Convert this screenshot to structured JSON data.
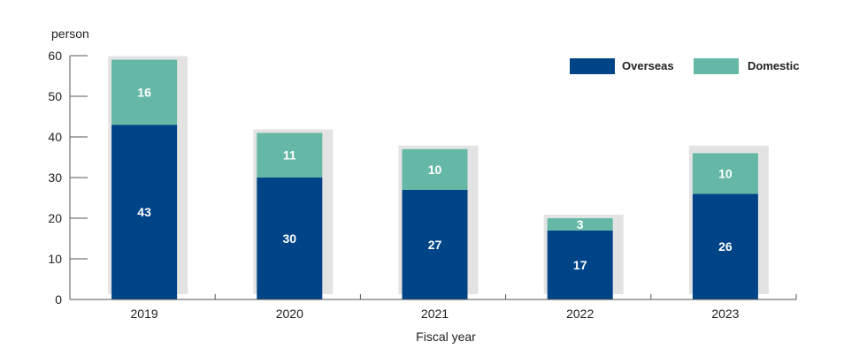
{
  "chart_data": {
    "type": "bar",
    "stacked": true,
    "categories": [
      "2019",
      "2020",
      "2021",
      "2022",
      "2023"
    ],
    "series": [
      {
        "name": "Overseas",
        "values": [
          43,
          30,
          27,
          17,
          26
        ],
        "color": "#004488",
        "label_values": [
          "43",
          "30",
          "27",
          "17",
          "26"
        ]
      },
      {
        "name": "Domestic",
        "values": [
          16,
          11,
          10,
          3,
          10
        ],
        "color": "#66B8A6",
        "label_values": [
          "16",
          "11",
          "10",
          "3",
          "10"
        ]
      }
    ],
    "bar_totals_drawn": [
      59,
      41,
      37,
      20,
      37
    ],
    "shadow_color": "#E3E3E3",
    "xlabel": "Fiscal year",
    "ylabel": "person",
    "ylim": [
      0,
      60
    ],
    "yticks": [
      0,
      10,
      20,
      30,
      40,
      50,
      60
    ],
    "ytick_labels": [
      "0",
      "10",
      "20",
      "30",
      "40",
      "50",
      "60"
    ],
    "legend_position": "top-right",
    "grid": false
  }
}
